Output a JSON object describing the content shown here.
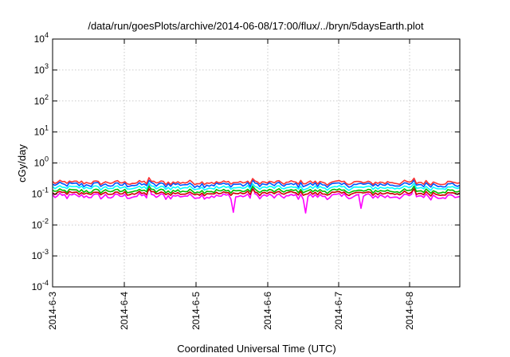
{
  "chart_data": {
    "type": "line",
    "title": "/data/run/goesPlots/archive/2014-06-08/17:00/flux/../bryn/5daysEarth.plot",
    "xlabel": "Coordinated Universal Time (UTC)",
    "ylabel": "cGy/day",
    "yscale": "log",
    "ylim": [
      0.0001,
      10000
    ],
    "y_ticks": [
      {
        "base": "10",
        "exp": "-4"
      },
      {
        "base": "10",
        "exp": "-3"
      },
      {
        "base": "10",
        "exp": "-2"
      },
      {
        "base": "10",
        "exp": "-1"
      },
      {
        "base": "10",
        "exp": "0"
      },
      {
        "base": "10",
        "exp": "1"
      },
      {
        "base": "10",
        "exp": "2"
      },
      {
        "base": "10",
        "exp": "3"
      },
      {
        "base": "10",
        "exp": "4"
      }
    ],
    "x_ticks": [
      "2014-6-3",
      "2014-6-4",
      "2014-6-5",
      "2014-6-6",
      "2014-6-7",
      "2014-6-8"
    ],
    "xlim": [
      "2014-6-3",
      "2014-6-8 17:00"
    ],
    "grid": true,
    "series": [
      {
        "color": "#ff00ff",
        "level": 0.085,
        "spread": 0.07
      },
      {
        "color": "#cc0000",
        "level": 0.105,
        "spread": 0.05
      },
      {
        "color": "#00bb00",
        "level": 0.125,
        "spread": 0.05
      },
      {
        "color": "#00ffff",
        "level": 0.16,
        "spread": 0.05
      },
      {
        "color": "#0055ff",
        "level": 0.2,
        "spread": 0.06
      },
      {
        "color": "#ff3333",
        "level": 0.235,
        "spread": 0.05
      }
    ]
  }
}
